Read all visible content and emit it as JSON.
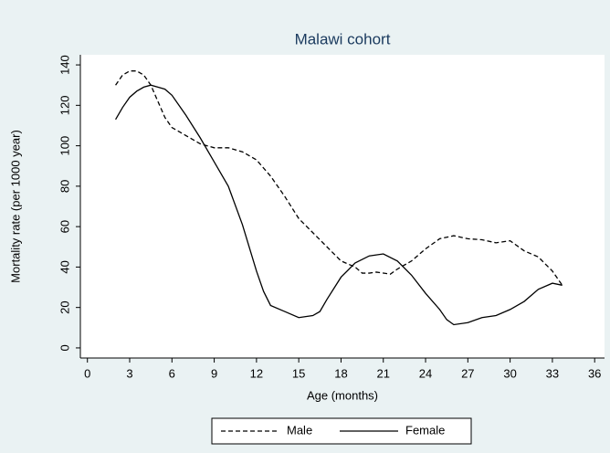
{
  "chart_data": {
    "type": "line",
    "title": "Malawi cohort",
    "xlabel": "Age (months)",
    "ylabel": "Mortality rate (per 1000 year)",
    "xlim": [
      -0.5,
      36.7
    ],
    "ylim": [
      -5,
      145
    ],
    "xticks": [
      0,
      3,
      6,
      9,
      12,
      15,
      18,
      21,
      24,
      27,
      30,
      33,
      36
    ],
    "yticks": [
      0,
      20,
      40,
      60,
      80,
      100,
      120,
      140
    ],
    "grid": false,
    "legend": "bottom",
    "series": [
      {
        "name": "Male",
        "color": "#000000",
        "dash": "dashed",
        "x": [
          2,
          2.5,
          3,
          3.5,
          4,
          4.5,
          5,
          5.5,
          6,
          7,
          8,
          9,
          10,
          11,
          12,
          13,
          14,
          15,
          16,
          17,
          18,
          19,
          19.5,
          20,
          20.5,
          21,
          21.5,
          22,
          23,
          24,
          25,
          26,
          27,
          28,
          29,
          30,
          31,
          32,
          33,
          33.7
        ],
        "values": [
          130,
          135,
          137,
          137,
          135,
          130,
          122,
          114,
          109,
          105,
          101,
          99,
          99,
          97,
          93,
          85,
          75,
          64,
          57,
          50,
          43,
          40,
          37,
          37,
          37.5,
          37,
          36.5,
          39,
          43,
          49,
          54,
          55.5,
          54,
          53.5,
          52,
          53,
          48,
          45,
          38,
          31
        ]
      },
      {
        "name": "Female",
        "color": "#000000",
        "dash": "solid",
        "x": [
          2,
          2.5,
          3,
          3.5,
          4,
          4.5,
          5,
          5.5,
          6,
          7,
          8,
          9,
          10,
          11,
          12,
          12.5,
          13,
          14,
          15,
          16,
          16.5,
          17,
          18,
          19,
          20,
          21,
          22,
          23,
          24,
          25,
          25.5,
          26,
          27,
          28,
          29,
          30,
          31,
          32,
          33,
          33.7
        ],
        "values": [
          113,
          119,
          124,
          127,
          129,
          130,
          129,
          128,
          125,
          115,
          104,
          92,
          80,
          61,
          38,
          28,
          21,
          18,
          15,
          16,
          18,
          24,
          35,
          42,
          45.5,
          46.5,
          43,
          36,
          27,
          19,
          14,
          11.5,
          12.5,
          15,
          16,
          19,
          23,
          29,
          32,
          31
        ]
      }
    ]
  }
}
